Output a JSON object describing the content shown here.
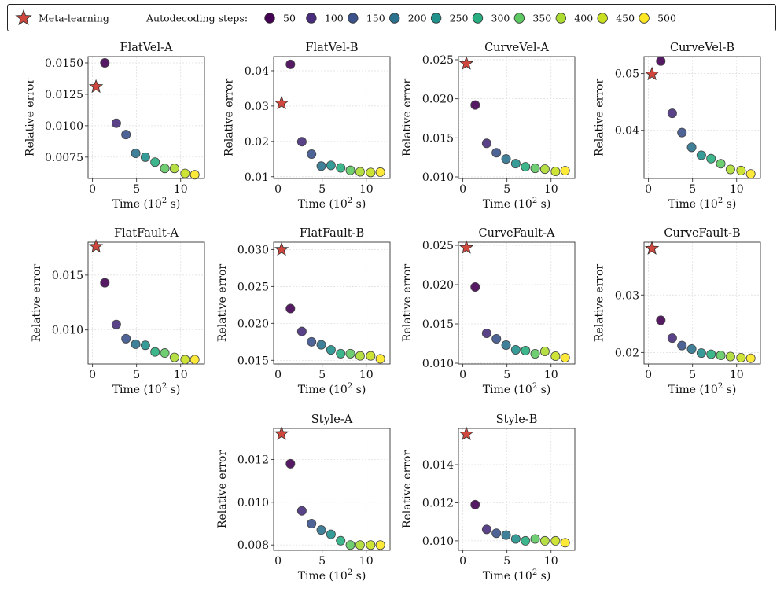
{
  "legend": {
    "meta_label": "Meta-learning",
    "steps_label": "Autodecoding steps:",
    "meta_color": "#d0473d",
    "steps": [
      {
        "label": "50",
        "color": "#440154"
      },
      {
        "label": "100",
        "color": "#472d7b"
      },
      {
        "label": "150",
        "color": "#3b528b"
      },
      {
        "label": "200",
        "color": "#2c728e"
      },
      {
        "label": "250",
        "color": "#21918c"
      },
      {
        "label": "300",
        "color": "#28ae80"
      },
      {
        "label": "350",
        "color": "#5ec962"
      },
      {
        "label": "400",
        "color": "#addc30"
      },
      {
        "label": "450",
        "color": "#c8e020"
      },
      {
        "label": "500",
        "color": "#fde725"
      }
    ]
  },
  "chart_data": [
    {
      "type": "scatter",
      "title": "FlatVel-A",
      "xlabel": "Time (10^2 s)",
      "ylabel": "Relative error",
      "xlim": [
        -0.5,
        12.7
      ],
      "ylim": [
        0.0058,
        0.0155
      ],
      "xticks": [
        0,
        5,
        10
      ],
      "yticks": [
        0.0075,
        0.01,
        0.0125,
        0.015
      ],
      "ytick_labels": [
        "0.0075",
        "0.0100",
        "0.0125",
        "0.0150"
      ],
      "meta": {
        "x": 0.4,
        "y": 0.0131
      },
      "steps_x": [
        1.4,
        2.7,
        3.8,
        4.9,
        6.0,
        7.1,
        8.2,
        9.3,
        10.5,
        11.6
      ],
      "steps_y": [
        0.015,
        0.0102,
        0.0093,
        0.0078,
        0.0075,
        0.0071,
        0.0066,
        0.0066,
        0.0062,
        0.0061
      ]
    },
    {
      "type": "scatter",
      "title": "FlatVel-B",
      "xlabel": "Time (10^2 s)",
      "ylabel": "Relative error",
      "xlim": [
        -0.5,
        12.7
      ],
      "ylim": [
        0.0095,
        0.044
      ],
      "xticks": [
        0,
        5,
        10
      ],
      "yticks": [
        0.01,
        0.02,
        0.03,
        0.04
      ],
      "ytick_labels": [
        "0.01",
        "0.02",
        "0.03",
        "0.04"
      ],
      "meta": {
        "x": 0.4,
        "y": 0.0308
      },
      "steps_x": [
        1.4,
        2.7,
        3.8,
        4.9,
        6.0,
        7.1,
        8.2,
        9.3,
        10.5,
        11.6
      ],
      "steps_y": [
        0.0418,
        0.0199,
        0.0164,
        0.013,
        0.0132,
        0.0125,
        0.0118,
        0.0114,
        0.0112,
        0.0113
      ]
    },
    {
      "type": "scatter",
      "title": "CurveVel-A",
      "xlabel": "Time (10^2 s)",
      "ylabel": "Relative error",
      "xlim": [
        -0.5,
        12.7
      ],
      "ylim": [
        0.0098,
        0.0254
      ],
      "xticks": [
        0,
        5,
        10
      ],
      "yticks": [
        0.01,
        0.015,
        0.02,
        0.025
      ],
      "ytick_labels": [
        "0.010",
        "0.015",
        "0.020",
        "0.025"
      ],
      "meta": {
        "x": 0.4,
        "y": 0.0245
      },
      "steps_x": [
        1.4,
        2.7,
        3.8,
        4.9,
        6.0,
        7.1,
        8.2,
        9.3,
        10.5,
        11.6
      ],
      "steps_y": [
        0.0192,
        0.0143,
        0.0131,
        0.0123,
        0.0117,
        0.0113,
        0.0111,
        0.011,
        0.0107,
        0.0108
      ]
    },
    {
      "type": "scatter",
      "title": "CurveVel-B",
      "xlabel": "Time (10^2 s)",
      "ylabel": "Relative error",
      "xlim": [
        -0.5,
        12.7
      ],
      "ylim": [
        0.0315,
        0.053
      ],
      "xticks": [
        0,
        5,
        10
      ],
      "yticks": [
        0.04,
        0.05
      ],
      "ytick_labels": [
        "0.04",
        "0.05"
      ],
      "meta": {
        "x": 0.4,
        "y": 0.0499
      },
      "steps_x": [
        1.4,
        2.7,
        3.8,
        4.9,
        6.0,
        7.1,
        8.2,
        9.3,
        10.5,
        11.6
      ],
      "steps_y": [
        0.0522,
        0.043,
        0.0396,
        0.037,
        0.0356,
        0.035,
        0.0341,
        0.0331,
        0.0329,
        0.0323
      ]
    },
    {
      "type": "scatter",
      "title": "FlatFault-A",
      "xlabel": "Time (10^2 s)",
      "ylabel": "Relative error",
      "xlim": [
        -0.5,
        12.7
      ],
      "ylim": [
        0.0069,
        0.018
      ],
      "xticks": [
        0,
        5,
        10
      ],
      "yticks": [
        0.01,
        0.015
      ],
      "ytick_labels": [
        "0.010",
        "0.015"
      ],
      "meta": {
        "x": 0.4,
        "y": 0.0176
      },
      "steps_x": [
        1.4,
        2.7,
        3.8,
        4.9,
        6.0,
        7.1,
        8.2,
        9.3,
        10.5,
        11.6
      ],
      "steps_y": [
        0.0143,
        0.0105,
        0.0092,
        0.0087,
        0.0086,
        0.008,
        0.0079,
        0.0075,
        0.0073,
        0.0073
      ]
    },
    {
      "type": "scatter",
      "title": "FlatFault-B",
      "xlabel": "Time (10^2 s)",
      "ylabel": "Relative error",
      "xlim": [
        -0.5,
        12.7
      ],
      "ylim": [
        0.0145,
        0.031
      ],
      "xticks": [
        0,
        5,
        10
      ],
      "yticks": [
        0.015,
        0.02,
        0.025,
        0.03
      ],
      "ytick_labels": [
        "0.015",
        "0.020",
        "0.025",
        "0.030"
      ],
      "meta": {
        "x": 0.4,
        "y": 0.03
      },
      "steps_x": [
        1.4,
        2.7,
        3.8,
        4.9,
        6.0,
        7.1,
        8.2,
        9.3,
        10.5,
        11.6
      ],
      "steps_y": [
        0.022,
        0.0189,
        0.0175,
        0.0171,
        0.0164,
        0.0159,
        0.0159,
        0.0156,
        0.0156,
        0.0152
      ]
    },
    {
      "type": "scatter",
      "title": "CurveFault-A",
      "xlabel": "Time (10^2 s)",
      "ylabel": "Relative error",
      "xlim": [
        -0.5,
        12.7
      ],
      "ylim": [
        0.0099,
        0.0254
      ],
      "xticks": [
        0,
        5,
        10
      ],
      "yticks": [
        0.01,
        0.015,
        0.02,
        0.025
      ],
      "ytick_labels": [
        "0.010",
        "0.015",
        "0.020",
        "0.025"
      ],
      "meta": {
        "x": 0.4,
        "y": 0.0247
      },
      "steps_x": [
        1.4,
        2.7,
        3.8,
        4.9,
        6.0,
        7.1,
        8.2,
        9.3,
        10.5,
        11.6
      ],
      "steps_y": [
        0.0197,
        0.0138,
        0.0131,
        0.0123,
        0.0117,
        0.0116,
        0.0112,
        0.0115,
        0.0109,
        0.0107
      ]
    },
    {
      "type": "scatter",
      "title": "CurveFault-B",
      "xlabel": "Time (10^2 s)",
      "ylabel": "Relative error",
      "xlim": [
        -0.5,
        12.7
      ],
      "ylim": [
        0.018,
        0.0392
      ],
      "xticks": [
        0,
        5,
        10
      ],
      "yticks": [
        0.02,
        0.03
      ],
      "ytick_labels": [
        "0.02",
        "0.03"
      ],
      "meta": {
        "x": 0.4,
        "y": 0.0381
      },
      "steps_x": [
        1.4,
        2.7,
        3.8,
        4.9,
        6.0,
        7.1,
        8.2,
        9.3,
        10.5,
        11.6
      ],
      "steps_y": [
        0.0256,
        0.0225,
        0.0212,
        0.0206,
        0.0199,
        0.0197,
        0.0195,
        0.0193,
        0.0191,
        0.019
      ]
    },
    {
      "type": "scatter",
      "title": "Style-A",
      "xlabel": "Time (10^2 s)",
      "ylabel": "Relative error",
      "xlim": [
        -0.5,
        12.7
      ],
      "ylim": [
        0.00775,
        0.01345
      ],
      "xticks": [
        0,
        5,
        10
      ],
      "yticks": [
        0.008,
        0.01,
        0.012
      ],
      "ytick_labels": [
        "0.008",
        "0.010",
        "0.012"
      ],
      "meta": {
        "x": 0.4,
        "y": 0.0132
      },
      "steps_x": [
        1.4,
        2.7,
        3.8,
        4.9,
        6.0,
        7.1,
        8.2,
        9.3,
        10.5,
        11.6
      ],
      "steps_y": [
        0.0118,
        0.0096,
        0.009,
        0.0087,
        0.0085,
        0.0082,
        0.008,
        0.008,
        0.008,
        0.008
      ]
    },
    {
      "type": "scatter",
      "title": "Style-B",
      "xlabel": "Time (10^2 s)",
      "ylabel": "Relative error",
      "xlim": [
        -0.5,
        12.7
      ],
      "ylim": [
        0.0095,
        0.0159
      ],
      "xticks": [
        0,
        5,
        10
      ],
      "yticks": [
        0.01,
        0.012,
        0.014
      ],
      "ytick_labels": [
        "0.010",
        "0.012",
        "0.014"
      ],
      "meta": {
        "x": 0.4,
        "y": 0.0156
      },
      "steps_x": [
        1.4,
        2.7,
        3.8,
        4.9,
        6.0,
        7.1,
        8.2,
        9.3,
        10.5,
        11.6
      ],
      "steps_y": [
        0.0119,
        0.0106,
        0.0104,
        0.0103,
        0.0101,
        0.01,
        0.0101,
        0.01,
        0.01,
        0.0099
      ]
    }
  ]
}
